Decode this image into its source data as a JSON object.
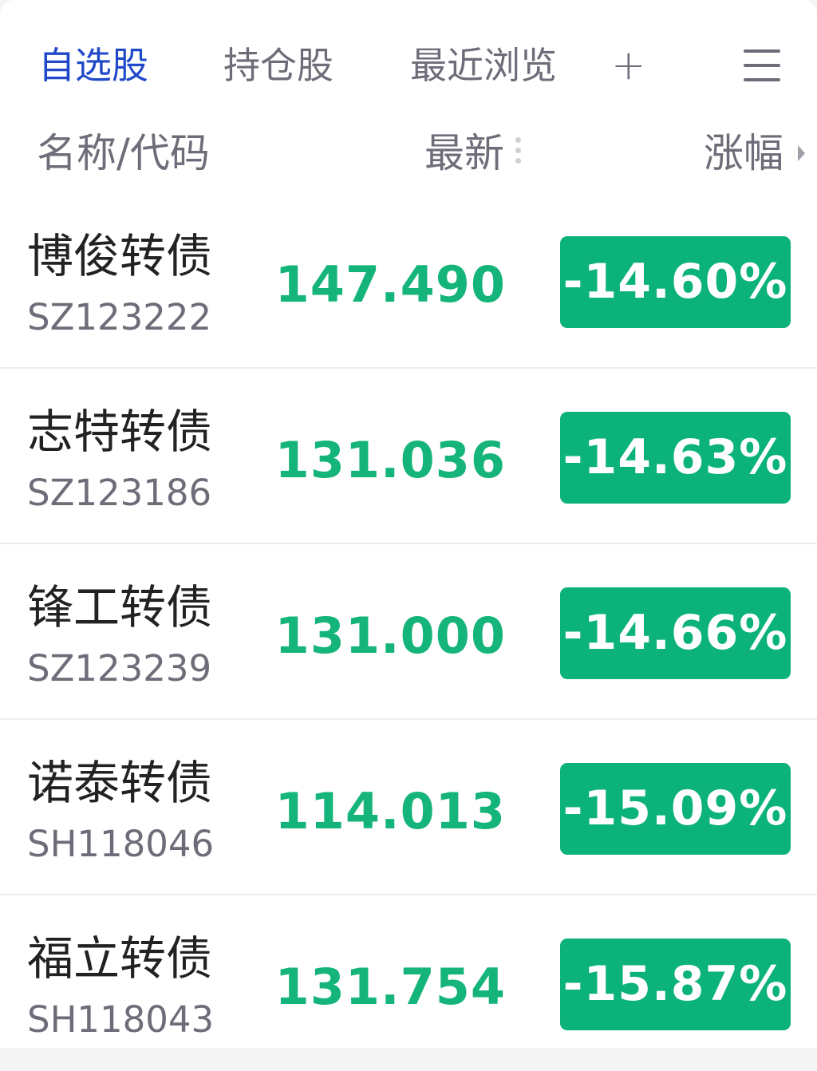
{
  "tabs": [
    {
      "label": "自选股",
      "active": true
    },
    {
      "label": "持仓股"
    },
    {
      "label": "最近浏览"
    }
  ],
  "add_label": "+",
  "columns": {
    "name": "名称/代码",
    "latest": "最新",
    "change": "涨幅"
  },
  "colors": {
    "accent": "#1f49c9",
    "down": "#0bb27a"
  },
  "rows": [
    {
      "name": "博俊转债",
      "code": "SZ123222",
      "price": "147.490",
      "change": "-14.60%"
    },
    {
      "name": "志特转债",
      "code": "SZ123186",
      "price": "131.036",
      "change": "-14.63%"
    },
    {
      "name": "锋工转债",
      "code": "SZ123239",
      "price": "131.000",
      "change": "-14.66%"
    },
    {
      "name": "诺泰转债",
      "code": "SH118046",
      "price": "114.013",
      "change": "-15.09%"
    },
    {
      "name": "福立转债",
      "code": "SH118043",
      "price": "131.754",
      "change": "-15.87%"
    }
  ]
}
